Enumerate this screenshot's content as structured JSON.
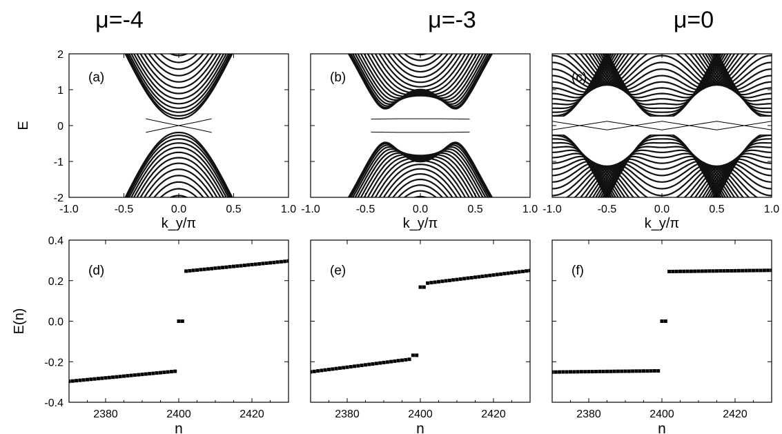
{
  "figure": {
    "column_titles": [
      "μ=-4",
      "μ=-3",
      "μ=0"
    ]
  },
  "chart_data": [
    {
      "type": "line",
      "panel_label": "(a)",
      "title": "μ=-4",
      "xlabel": "k_y/π",
      "ylabel": "E",
      "xlim": [
        -1.0,
        1.0
      ],
      "ylim": [
        -2,
        2
      ],
      "xticks": [
        "-1.0",
        "-0.5",
        "0.0",
        "0.5",
        "1.0"
      ],
      "yticks": [
        "-2",
        "-1",
        "0",
        "1",
        "2"
      ],
      "band_model": {
        "m": -4,
        "n_bands": 28,
        "gap": 0.19
      },
      "edge_states": [
        {
          "name": "",
          "x": [
            -0.3,
            -0.15,
            0.0,
            0.15,
            0.3
          ],
          "y": [
            0.19,
            0.09,
            0.0,
            -0.09,
            -0.19
          ]
        },
        {
          "name": "",
          "x": [
            -0.3,
            -0.15,
            0.0,
            0.15,
            0.3
          ],
          "y": [
            -0.19,
            -0.09,
            0.0,
            0.09,
            0.19
          ]
        }
      ]
    },
    {
      "type": "line",
      "panel_label": "(b)",
      "title": "μ=-3",
      "xlabel": "k_y/π",
      "ylabel": "",
      "xlim": [
        -1.0,
        1.0
      ],
      "ylim": [
        -2,
        2
      ],
      "xticks": [
        "-1.0",
        "-0.5",
        "0.0",
        "0.5",
        "1.0"
      ],
      "yticks": [],
      "band_model": {
        "m": -3,
        "n_bands": 28,
        "gap": 0.18
      },
      "edge_states": [
        {
          "name": "",
          "x": [
            -0.45,
            -0.2,
            0.0,
            0.2,
            0.45
          ],
          "y": [
            0.18,
            0.19,
            0.19,
            0.19,
            0.18
          ]
        },
        {
          "name": "",
          "x": [
            -0.45,
            -0.2,
            0.0,
            0.2,
            0.45
          ],
          "y": [
            -0.18,
            -0.19,
            -0.19,
            -0.19,
            -0.18
          ]
        }
      ]
    },
    {
      "type": "line",
      "panel_label": "(c)",
      "title": "μ=0",
      "xlabel": "k_y/π",
      "ylabel": "",
      "xlim": [
        -1.0,
        1.0
      ],
      "ylim": [
        -2,
        2
      ],
      "xticks": [
        "-1.0",
        "-0.5",
        "0.0",
        "0.5",
        "1.0"
      ],
      "yticks": [],
      "band_model": {
        "m": 0,
        "n_bands": 28,
        "gap": 0.25
      },
      "edge_states": [
        {
          "name": "",
          "x": [
            -1.0,
            -0.75,
            -0.5,
            -0.25,
            0.0,
            0.25,
            0.5,
            0.75,
            1.0
          ],
          "y": [
            0.12,
            0.0,
            -0.12,
            0.0,
            0.12,
            0.0,
            -0.12,
            0.0,
            0.12
          ]
        },
        {
          "name": "",
          "x": [
            -1.0,
            -0.75,
            -0.5,
            -0.25,
            0.0,
            0.25,
            0.5,
            0.75,
            1.0
          ],
          "y": [
            -0.12,
            0.0,
            0.12,
            0.0,
            -0.12,
            0.0,
            0.12,
            0.0,
            -0.12
          ]
        }
      ]
    },
    {
      "type": "scatter",
      "panel_label": "(d)",
      "xlabel": "n",
      "ylabel": "E(n)",
      "xlim": [
        2370,
        2430
      ],
      "ylim": [
        -0.4,
        0.4
      ],
      "xticks": [
        "2380",
        "2400",
        "2420"
      ],
      "yticks": [
        "-0.4",
        "-0.2",
        "0.0",
        "0.2",
        "0.4"
      ],
      "segments": [
        {
          "n_start": 2370,
          "n_end": 2399,
          "e_start": -0.297,
          "e_end": -0.247
        },
        {
          "n_start": 2400,
          "n_end": 2401,
          "e_start": 0.0,
          "e_end": 0.0
        },
        {
          "n_start": 2402,
          "n_end": 2430,
          "e_start": 0.247,
          "e_end": 0.297
        }
      ]
    },
    {
      "type": "scatter",
      "panel_label": "(e)",
      "xlabel": "n",
      "ylabel": "",
      "xlim": [
        2370,
        2430
      ],
      "ylim": [
        -0.4,
        0.4
      ],
      "xticks": [
        "2380",
        "2400",
        "2420"
      ],
      "yticks": [],
      "segments": [
        {
          "n_start": 2370,
          "n_end": 2397,
          "e_start": -0.25,
          "e_end": -0.188
        },
        {
          "n_start": 2398,
          "n_end": 2399,
          "e_start": -0.168,
          "e_end": -0.168
        },
        {
          "n_start": 2400,
          "n_end": 2401,
          "e_start": 0.168,
          "e_end": 0.168
        },
        {
          "n_start": 2402,
          "n_end": 2430,
          "e_start": 0.188,
          "e_end": 0.25
        }
      ]
    },
    {
      "type": "scatter",
      "panel_label": "(f)",
      "xlabel": "n",
      "ylabel": "",
      "xlim": [
        2370,
        2430
      ],
      "ylim": [
        -0.4,
        0.4
      ],
      "xticks": [
        "2380",
        "2400",
        "2420"
      ],
      "yticks": [],
      "segments": [
        {
          "n_start": 2370,
          "n_end": 2399,
          "e_start": -0.251,
          "e_end": -0.245
        },
        {
          "n_start": 2400,
          "n_end": 2401,
          "e_start": 0.0,
          "e_end": 0.0
        },
        {
          "n_start": 2402,
          "n_end": 2430,
          "e_start": 0.245,
          "e_end": 0.251
        }
      ]
    }
  ]
}
